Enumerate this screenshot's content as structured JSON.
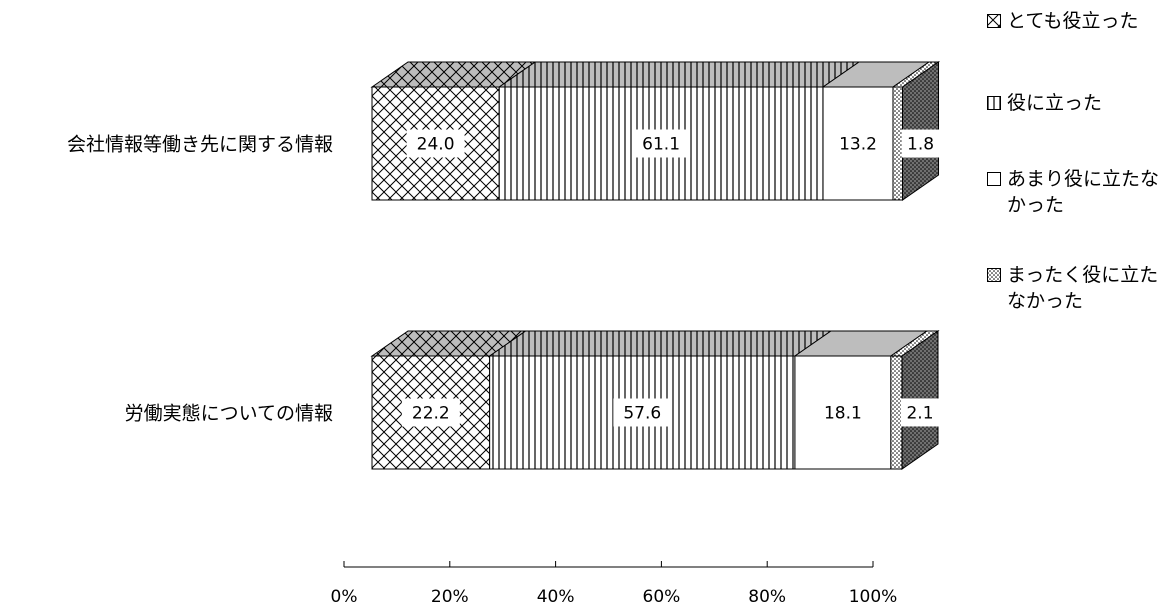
{
  "chart_data": {
    "type": "bar",
    "orientation": "horizontal",
    "stacked": true,
    "percent": true,
    "style": "3d",
    "categories": [
      "会社情報等働き先に関する情報",
      "労働実態についての情報"
    ],
    "series": [
      {
        "name": "とても役立った",
        "values": [
          24.0,
          22.2
        ],
        "pattern": "crosshatch"
      },
      {
        "name": "役に立った",
        "values": [
          61.1,
          57.6
        ],
        "pattern": "vertical-lines"
      },
      {
        "name": "あまり役に立たなかった",
        "values": [
          13.2,
          18.1
        ],
        "pattern": "solid-white"
      },
      {
        "name": "まったく役に立たなかった",
        "values": [
          1.8,
          2.1
        ],
        "pattern": "dots"
      }
    ],
    "data_labels": [
      [
        "24.0",
        "61.1",
        "13.2",
        "1.8"
      ],
      [
        "22.2",
        "57.6",
        "18.1",
        "2.1"
      ]
    ],
    "xlim": [
      0,
      100
    ],
    "xticks": [
      "0%",
      "20%",
      "40%",
      "60%",
      "80%",
      "100%"
    ],
    "grid": false,
    "legend_position": "right",
    "colors": {
      "background": "#ffffff",
      "stroke": "#000000",
      "top_face": "#bdbdbd",
      "dot_fill": "#707070"
    }
  },
  "legend": {
    "items": [
      {
        "label": "とても役立った"
      },
      {
        "label": "役に立った"
      },
      {
        "label": "あまり役に立たな\nかった"
      },
      {
        "label": "まったく役に立た\nなかった"
      }
    ]
  }
}
